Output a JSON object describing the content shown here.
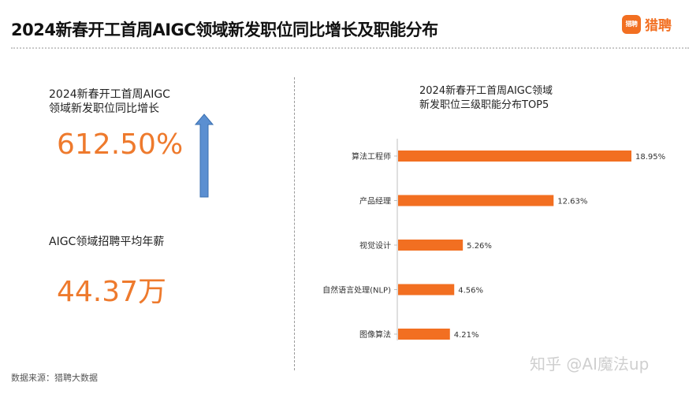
{
  "header": {
    "title": "2024新春开工首周AIGC领域新发职位同比增长及职能分布",
    "logo_mark": "猎聘",
    "logo_text": "猎聘"
  },
  "stats": {
    "growth": {
      "label_line1": "2024新春开工首周AIGC",
      "label_line2": "领域新发职位同比增长",
      "value": "612.50%"
    },
    "salary": {
      "label": "AIGC领域招聘平均年薪",
      "value": "44.37万"
    }
  },
  "colors": {
    "accent": "#f26f21",
    "value_text": "#ee7a2d",
    "arrow_fill": "#5b8fd1",
    "arrow_stroke": "#3a6fb0"
  },
  "chart_data": {
    "type": "bar",
    "orientation": "horizontal",
    "title_line1": "2024新春开工首周AIGC领域",
    "title_line2": "新发职位三级职能分布TOP5",
    "categories": [
      "算法工程师",
      "产品经理",
      "视觉设计",
      "自然语言处理(NLP)",
      "图像算法"
    ],
    "values": [
      18.95,
      12.63,
      5.26,
      4.56,
      4.21
    ],
    "value_labels": [
      "18.95%",
      "12.63%",
      "5.26%",
      "4.56%",
      "4.21%"
    ],
    "value_unit": "%",
    "xlim": [
      0,
      18.95
    ],
    "grid": false,
    "legend": "none"
  },
  "footer": {
    "source": "数据来源：猎聘大数据",
    "watermark": "知乎 @AI魔法up"
  }
}
